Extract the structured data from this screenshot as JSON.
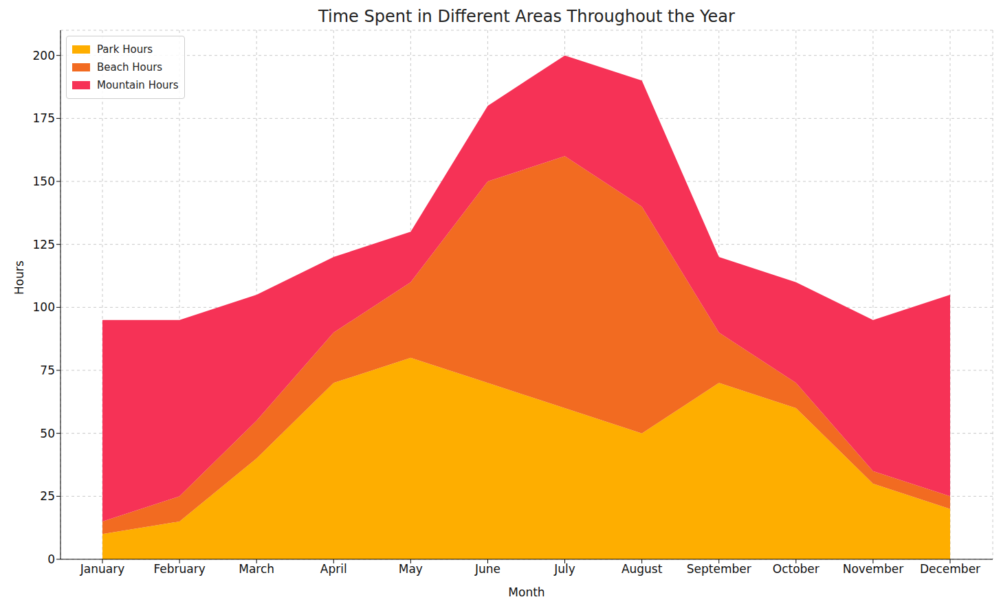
{
  "chart_data": {
    "type": "area",
    "title": "Time Spent in Different Areas Throughout the Year",
    "x_label": "Month",
    "y_label": "Hours",
    "categories": [
      "January",
      "February",
      "March",
      "April",
      "May",
      "June",
      "July",
      "August",
      "September",
      "October",
      "November",
      "December"
    ],
    "series": [
      {
        "name": "Park Hours",
        "color": "#FEAE00",
        "values": [
          10,
          15,
          40,
          70,
          80,
          70,
          60,
          50,
          70,
          60,
          30,
          20
        ]
      },
      {
        "name": "Beach Hours",
        "color": "#F26B21",
        "values": [
          5,
          10,
          15,
          20,
          30,
          80,
          100,
          90,
          20,
          10,
          5,
          5
        ]
      },
      {
        "name": "Mountain Hours",
        "color": "#F63256",
        "values": [
          80,
          70,
          50,
          30,
          20,
          30,
          40,
          50,
          30,
          40,
          60,
          80
        ]
      }
    ],
    "ylim": [
      0,
      210
    ],
    "yticks": [
      0,
      25,
      50,
      75,
      100,
      125,
      150,
      175,
      200
    ],
    "stacked": true,
    "grid": true,
    "legend": "upper left"
  }
}
